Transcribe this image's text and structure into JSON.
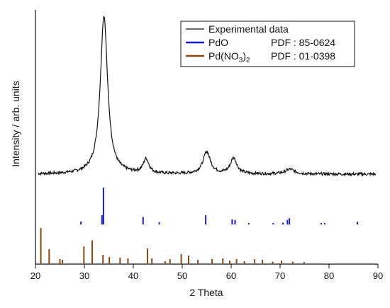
{
  "chart_data": {
    "type": "line",
    "title": "",
    "xlabel": "2 Theta",
    "ylabel": "Intensity / arb. units",
    "xlim": [
      20,
      90
    ],
    "xticks": [
      20,
      30,
      40,
      50,
      60,
      70,
      80,
      90
    ],
    "grid": false,
    "legend_position": "top-right",
    "colors": {
      "experimental": "#111111",
      "pdo": "#1c1cc8",
      "pdno3": "#8b4513",
      "axis": "#111111"
    },
    "legend": [
      {
        "label": "Experimental data",
        "pdf": "",
        "color": "#111111"
      },
      {
        "label_main": "Pd(NO",
        "label_sub": "3",
        "label_close": ")",
        "label_sub2": "2",
        "pdf": "PDF : 01-0398",
        "color": "#8b4513"
      },
      {
        "label": "PdO",
        "pdf": "PDF : 85-0624",
        "color": "#1c1cc8"
      }
    ],
    "series": [
      {
        "name": "Experimental data",
        "baseline": 0.0,
        "peaks": [
          {
            "center": 34.0,
            "height": 1.0,
            "width": 0.9
          },
          {
            "center": 42.6,
            "height": 0.09,
            "width": 0.7
          },
          {
            "center": 55.0,
            "height": 0.14,
            "width": 0.9
          },
          {
            "center": 60.5,
            "height": 0.1,
            "width": 0.8
          },
          {
            "center": 72.0,
            "height": 0.03,
            "width": 1.2
          }
        ]
      },
      {
        "name": "PdO",
        "sticks": [
          {
            "x": 29.3,
            "h": 0.08
          },
          {
            "x": 33.6,
            "h": 0.25
          },
          {
            "x": 33.9,
            "h": 1.0
          },
          {
            "x": 42.0,
            "h": 0.2
          },
          {
            "x": 45.3,
            "h": 0.06
          },
          {
            "x": 54.8,
            "h": 0.25
          },
          {
            "x": 60.2,
            "h": 0.14
          },
          {
            "x": 60.8,
            "h": 0.12
          },
          {
            "x": 63.6,
            "h": 0.04
          },
          {
            "x": 68.6,
            "h": 0.04
          },
          {
            "x": 70.6,
            "h": 0.05
          },
          {
            "x": 71.5,
            "h": 0.12
          },
          {
            "x": 71.9,
            "h": 0.17
          },
          {
            "x": 78.4,
            "h": 0.04
          },
          {
            "x": 79.1,
            "h": 0.04
          },
          {
            "x": 85.8,
            "h": 0.07
          }
        ]
      },
      {
        "name": "Pd(NO3)2",
        "sticks": [
          {
            "x": 21.1,
            "h": 1.0
          },
          {
            "x": 22.8,
            "h": 0.4
          },
          {
            "x": 25.0,
            "h": 0.12
          },
          {
            "x": 25.5,
            "h": 0.1
          },
          {
            "x": 29.9,
            "h": 0.48
          },
          {
            "x": 31.6,
            "h": 0.65
          },
          {
            "x": 33.8,
            "h": 0.24
          },
          {
            "x": 35.1,
            "h": 0.18
          },
          {
            "x": 37.3,
            "h": 0.16
          },
          {
            "x": 38.9,
            "h": 0.14
          },
          {
            "x": 42.9,
            "h": 0.42
          },
          {
            "x": 43.8,
            "h": 0.14
          },
          {
            "x": 46.5,
            "h": 0.06
          },
          {
            "x": 47.5,
            "h": 0.12
          },
          {
            "x": 49.8,
            "h": 0.26
          },
          {
            "x": 51.3,
            "h": 0.22
          },
          {
            "x": 53.2,
            "h": 0.1
          },
          {
            "x": 56.1,
            "h": 0.12
          },
          {
            "x": 58.3,
            "h": 0.14
          },
          {
            "x": 59.7,
            "h": 0.08
          },
          {
            "x": 61.1,
            "h": 0.12
          },
          {
            "x": 62.7,
            "h": 0.06
          },
          {
            "x": 64.8,
            "h": 0.12
          },
          {
            "x": 66.4,
            "h": 0.1
          },
          {
            "x": 68.5,
            "h": 0.05
          },
          {
            "x": 70.3,
            "h": 0.08
          },
          {
            "x": 72.6,
            "h": 0.05
          },
          {
            "x": 74.9,
            "h": 0.04
          }
        ]
      }
    ]
  }
}
